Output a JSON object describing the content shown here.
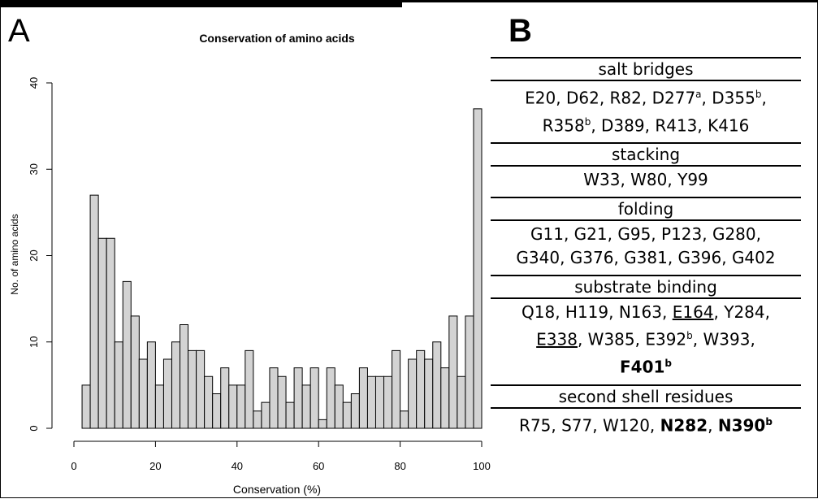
{
  "panel_labels": {
    "a": "A",
    "b": "B"
  },
  "chart_data": {
    "type": "bar",
    "title": "Conservation of amino acids",
    "xlabel": "Conservation (%)",
    "ylabel": "No. of amino acids",
    "xlim": [
      0,
      100
    ],
    "ylim": [
      0,
      40
    ],
    "xticks": [
      0,
      20,
      40,
      60,
      80,
      100
    ],
    "yticks": [
      0,
      10,
      20,
      30,
      40
    ],
    "bin_width": 2,
    "bin_start": 2,
    "values": [
      5,
      27,
      22,
      22,
      10,
      17,
      13,
      8,
      10,
      5,
      8,
      10,
      12,
      9,
      9,
      6,
      4,
      7,
      5,
      5,
      9,
      2,
      3,
      7,
      6,
      3,
      7,
      5,
      7,
      1,
      7,
      5,
      3,
      4,
      7,
      6,
      6,
      6,
      9,
      2,
      8,
      9,
      8,
      10,
      7,
      13,
      6,
      13,
      37
    ],
    "bar_color": "#d3d3d3",
    "edge_color": "#000000"
  },
  "table": {
    "salt_bridges_header": "salt bridges",
    "salt_bridges_line1": {
      "a": "E20, D62, R82, D277",
      "a_sup": "a",
      "b": ", D355",
      "b_sup": "b",
      "c": ","
    },
    "salt_bridges_line2": {
      "a": "R358",
      "a_sup": "b",
      "b": ", D389, R413, K416"
    },
    "stacking_header": "stacking",
    "stacking_line1": "W33, W80, Y99",
    "folding_header": "folding",
    "folding_line1": "G11, G21, G95, P123, G280,",
    "folding_line2": "G340, G376, G381, G396, G402",
    "substrate_header": "substrate binding",
    "substrate_line1": {
      "a": "Q18, H119, N163, ",
      "u": "E164",
      "b": ", Y284,"
    },
    "substrate_line2": {
      "u": "E338",
      "a": ", W385, E392",
      "a_sup": "b",
      "b": ", W393,"
    },
    "substrate_line3": {
      "bold": "F401",
      "sup": "b"
    },
    "second_shell_header": "second shell residues",
    "second_shell_line1": {
      "a": "R75, S77, W120, ",
      "b1": "N282",
      "sep": ", ",
      "b2": "N390",
      "sup": "b"
    }
  }
}
